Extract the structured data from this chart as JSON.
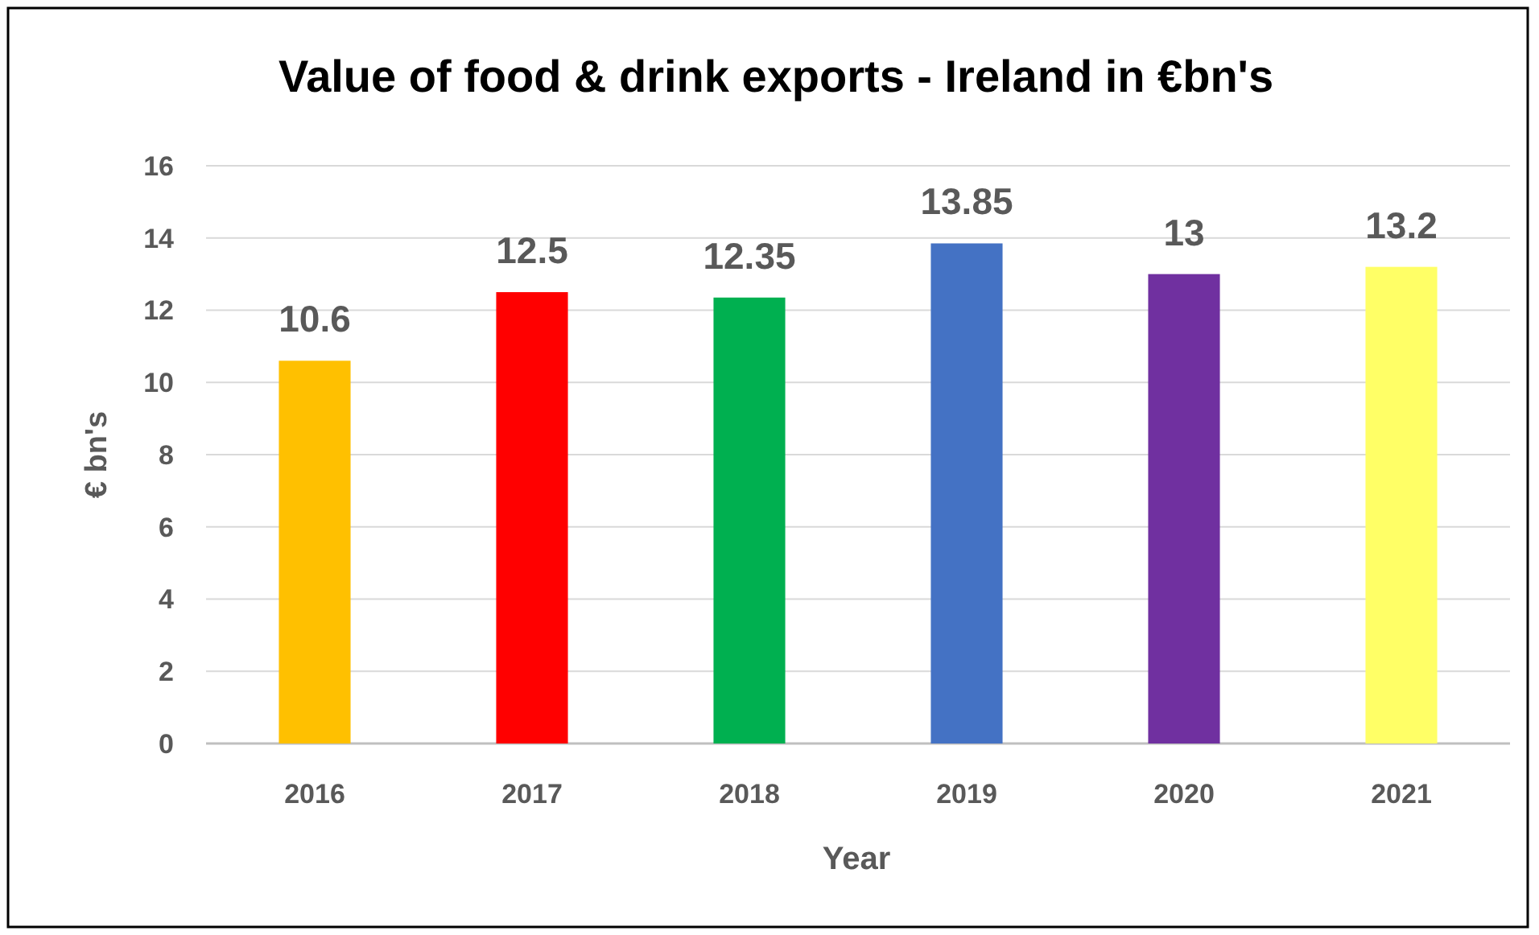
{
  "chart_data": {
    "type": "bar",
    "title": "Value of food & drink exports - Ireland in €bn's",
    "xlabel": "Year",
    "ylabel": "€ bn's",
    "categories": [
      "2016",
      "2017",
      "2018",
      "2019",
      "2020",
      "2021"
    ],
    "values": [
      10.6,
      12.5,
      12.35,
      13.85,
      13,
      13.2
    ],
    "colors": [
      "#ffc000",
      "#ff0000",
      "#00b050",
      "#4472c4",
      "#7030a0",
      "#ffff66"
    ],
    "ylim": [
      0,
      16
    ],
    "yticks": [
      0,
      2,
      4,
      6,
      8,
      10,
      12,
      14,
      16
    ],
    "grid": "y",
    "data_labels": true
  }
}
